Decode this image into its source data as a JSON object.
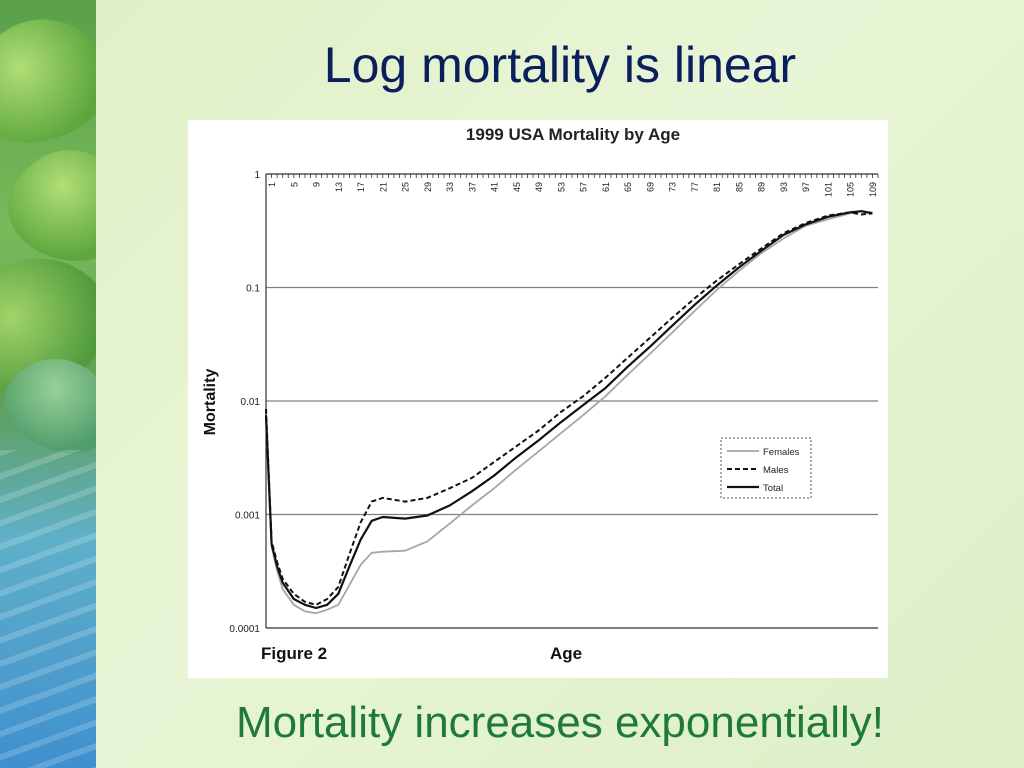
{
  "slide": {
    "title": "Log mortality is linear",
    "caption": "Mortality increases exponentially!"
  },
  "colors": {
    "title": "#0a1f5c",
    "caption": "#1f7a3a",
    "grid": "#808080",
    "females": "#a6a6a6",
    "males": "#111111",
    "total": "#111111"
  },
  "chart_data": {
    "type": "line",
    "title": "1999 USA Mortality by Age",
    "xlabel": "Age",
    "ylabel": "Mortality",
    "figure_label": "Figure 2",
    "y_scale": "log",
    "ylim": [
      0.0001,
      1
    ],
    "y_ticks": [
      1,
      0.1,
      0.01,
      0.001,
      0.0001
    ],
    "y_tick_labels": [
      "1",
      "0.1",
      "0.01",
      "0.001",
      "0.0001"
    ],
    "xlim": [
      0,
      110
    ],
    "x_tick_labels": [
      "1",
      "5",
      "9",
      "13",
      "17",
      "21",
      "25",
      "29",
      "33",
      "37",
      "41",
      "45",
      "49",
      "53",
      "57",
      "61",
      "65",
      "69",
      "73",
      "77",
      "81",
      "85",
      "89",
      "93",
      "97",
      "101",
      "105",
      "109"
    ],
    "grid": true,
    "legend_position": "right",
    "series": [
      {
        "name": "Females",
        "style": "solid-gray",
        "x": [
          0,
          1,
          2,
          3,
          5,
          7,
          9,
          11,
          13,
          15,
          17,
          19,
          21,
          25,
          29,
          33,
          37,
          41,
          45,
          49,
          53,
          57,
          61,
          65,
          69,
          73,
          77,
          81,
          85,
          89,
          93,
          97,
          101,
          105,
          107,
          109
        ],
        "y": [
          0.0068,
          0.00052,
          0.00032,
          0.00022,
          0.00016,
          0.00014,
          0.000135,
          0.000145,
          0.00016,
          0.00024,
          0.00036,
          0.00046,
          0.00047,
          0.00048,
          0.00058,
          0.00083,
          0.0012,
          0.0017,
          0.0025,
          0.0036,
          0.0052,
          0.0075,
          0.011,
          0.017,
          0.026,
          0.04,
          0.062,
          0.095,
          0.14,
          0.2,
          0.27,
          0.35,
          0.4,
          0.45,
          0.47,
          0.46
        ]
      },
      {
        "name": "Males",
        "style": "dashed",
        "x": [
          0,
          1,
          2,
          3,
          5,
          7,
          9,
          11,
          13,
          15,
          17,
          19,
          21,
          25,
          29,
          33,
          37,
          41,
          45,
          49,
          53,
          57,
          61,
          65,
          69,
          73,
          77,
          81,
          85,
          89,
          93,
          97,
          101,
          105,
          107,
          109
        ],
        "y": [
          0.0085,
          0.00058,
          0.00038,
          0.00027,
          0.0002,
          0.00017,
          0.00016,
          0.00018,
          0.00023,
          0.00045,
          0.00085,
          0.0013,
          0.0014,
          0.0013,
          0.0014,
          0.0017,
          0.0021,
          0.0029,
          0.004,
          0.0055,
          0.008,
          0.011,
          0.016,
          0.024,
          0.036,
          0.054,
          0.08,
          0.115,
          0.16,
          0.22,
          0.3,
          0.37,
          0.43,
          0.46,
          0.44,
          0.45
        ]
      },
      {
        "name": "Total",
        "style": "solid-black",
        "x": [
          0,
          1,
          2,
          3,
          5,
          7,
          9,
          11,
          13,
          15,
          17,
          19,
          21,
          25,
          29,
          33,
          37,
          41,
          45,
          49,
          53,
          57,
          61,
          65,
          69,
          73,
          77,
          81,
          85,
          89,
          93,
          97,
          101,
          105,
          107,
          109
        ],
        "y": [
          0.0075,
          0.00055,
          0.00035,
          0.00025,
          0.00018,
          0.00016,
          0.00015,
          0.00016,
          0.0002,
          0.00035,
          0.0006,
          0.00088,
          0.00095,
          0.00092,
          0.00098,
          0.0012,
          0.0016,
          0.0022,
          0.0032,
          0.0045,
          0.0065,
          0.0092,
          0.013,
          0.02,
          0.03,
          0.046,
          0.07,
          0.104,
          0.15,
          0.21,
          0.29,
          0.36,
          0.42,
          0.46,
          0.47,
          0.45
        ]
      }
    ]
  }
}
